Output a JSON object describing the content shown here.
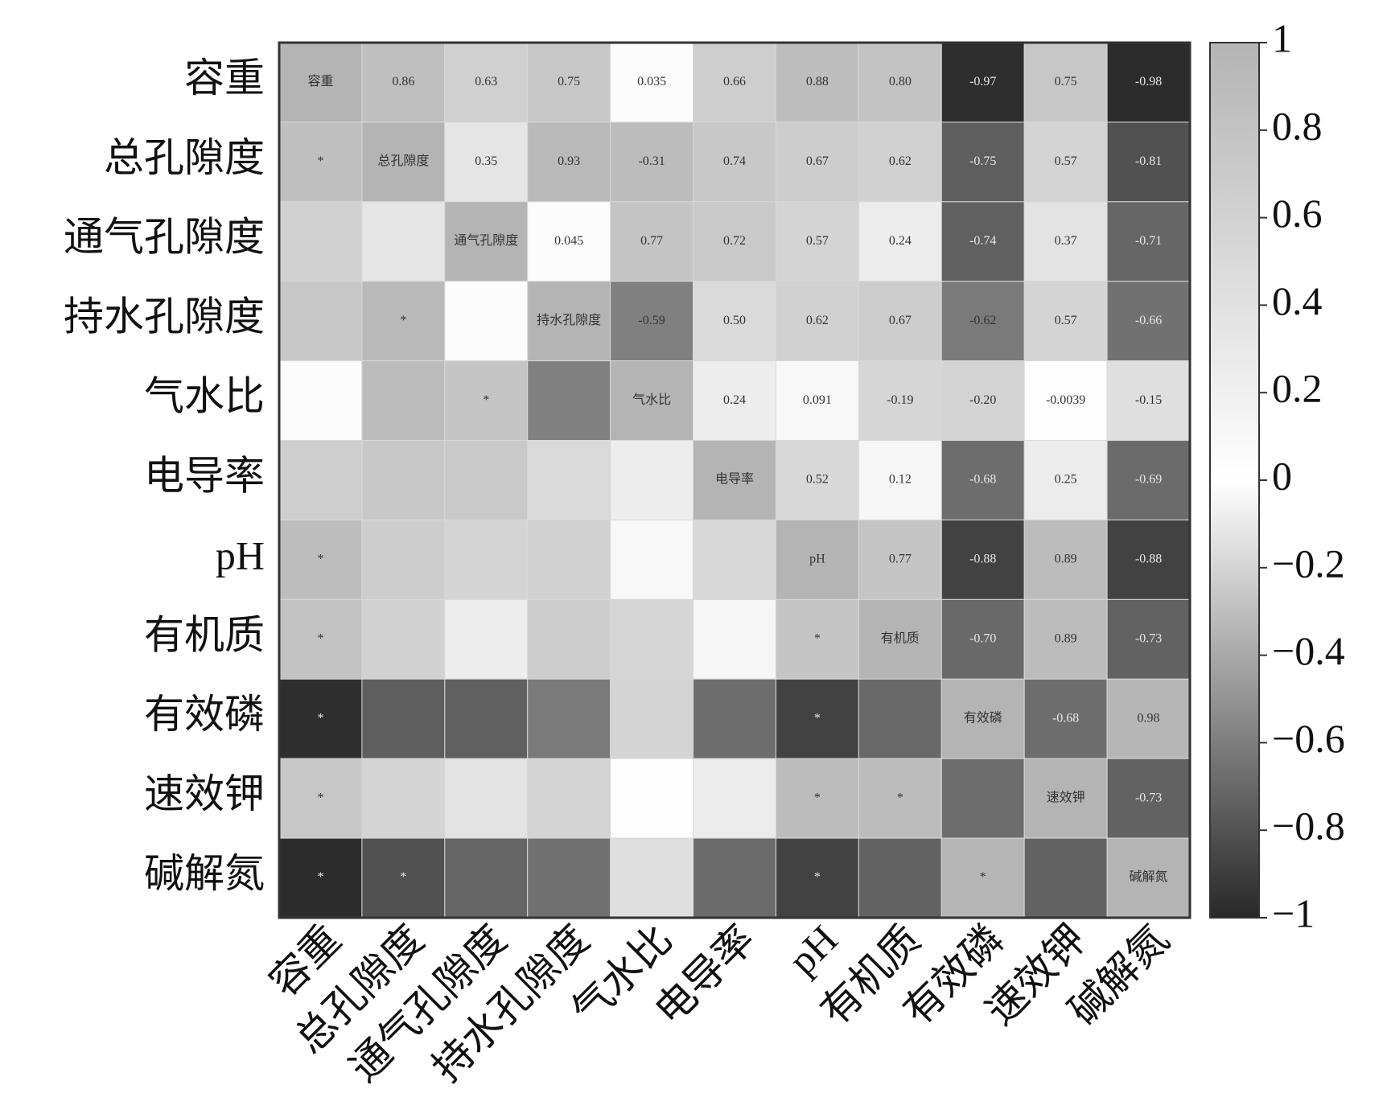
{
  "chart_data": {
    "type": "heatmap",
    "categories": [
      "容重",
      "总孔隙度",
      "通气孔隙度",
      "持水孔隙度",
      "气水比",
      "电导率",
      "pH",
      "有机质",
      "有效磷",
      "速效钾",
      "碱解氮"
    ],
    "values": [
      [
        null,
        0.86,
        0.63,
        0.75,
        0.035,
        0.66,
        0.88,
        0.8,
        -0.97,
        0.75,
        -0.98
      ],
      [
        null,
        null,
        0.35,
        0.93,
        -0.31,
        0.74,
        0.67,
        0.62,
        -0.75,
        0.57,
        -0.81
      ],
      [
        null,
        null,
        null,
        0.045,
        0.77,
        0.72,
        0.57,
        0.24,
        -0.74,
        0.37,
        -0.71
      ],
      [
        null,
        null,
        null,
        null,
        -0.59,
        0.5,
        0.62,
        0.67,
        -0.62,
        0.57,
        -0.66
      ],
      [
        null,
        null,
        null,
        null,
        null,
        0.24,
        0.091,
        -0.19,
        -0.2,
        -0.0039,
        -0.15
      ],
      [
        null,
        null,
        null,
        null,
        null,
        null,
        0.52,
        0.12,
        -0.68,
        0.25,
        -0.69
      ],
      [
        null,
        null,
        null,
        null,
        null,
        null,
        null,
        0.77,
        -0.88,
        0.89,
        -0.88
      ],
      [
        null,
        null,
        null,
        null,
        null,
        null,
        null,
        null,
        -0.7,
        0.89,
        -0.73
      ],
      [
        null,
        null,
        null,
        null,
        null,
        null,
        null,
        null,
        null,
        -0.68,
        0.98
      ],
      [
        null,
        null,
        null,
        null,
        null,
        null,
        null,
        null,
        null,
        null,
        -0.73
      ],
      [
        null,
        null,
        null,
        null,
        null,
        null,
        null,
        null,
        null,
        null,
        null
      ]
    ],
    "value_labels": [
      [
        null,
        "0.86",
        "0.63",
        "0.75",
        "0.035",
        "0.66",
        "0.88",
        "0.80",
        "-0.97",
        "0.75",
        "-0.98"
      ],
      [
        null,
        null,
        "0.35",
        "0.93",
        "-0.31",
        "0.74",
        "0.67",
        "0.62",
        "-0.75",
        "0.57",
        "-0.81"
      ],
      [
        null,
        null,
        null,
        "0.045",
        "0.77",
        "0.72",
        "0.57",
        "0.24",
        "-0.74",
        "0.37",
        "-0.71"
      ],
      [
        null,
        null,
        null,
        null,
        "-0.59",
        "0.50",
        "0.62",
        "0.67",
        "-0.62",
        "0.57",
        "-0.66"
      ],
      [
        null,
        null,
        null,
        null,
        null,
        "0.24",
        "0.091",
        "-0.19",
        "-0.20",
        "-0.0039",
        "-0.15"
      ],
      [
        null,
        null,
        null,
        null,
        null,
        null,
        "0.52",
        "0.12",
        "-0.68",
        "0.25",
        "-0.69"
      ],
      [
        null,
        null,
        null,
        null,
        null,
        null,
        null,
        "0.77",
        "-0.88",
        "0.89",
        "-0.88"
      ],
      [
        null,
        null,
        null,
        null,
        null,
        null,
        null,
        null,
        "-0.70",
        "0.89",
        "-0.73"
      ],
      [
        null,
        null,
        null,
        null,
        null,
        null,
        null,
        null,
        null,
        "-0.68",
        "0.98"
      ],
      [
        null,
        null,
        null,
        null,
        null,
        null,
        null,
        null,
        null,
        null,
        "-0.73"
      ],
      [
        null,
        null,
        null,
        null,
        null,
        null,
        null,
        null,
        null,
        null,
        null
      ]
    ],
    "significance": [
      [
        null,
        null,
        null,
        null,
        null,
        null,
        null,
        null,
        null,
        null,
        null
      ],
      [
        "*",
        null,
        null,
        null,
        null,
        null,
        null,
        null,
        null,
        null,
        null
      ],
      [
        null,
        null,
        null,
        null,
        null,
        null,
        null,
        null,
        null,
        null,
        null
      ],
      [
        null,
        "*",
        null,
        null,
        null,
        null,
        null,
        null,
        null,
        null,
        null
      ],
      [
        null,
        null,
        "*",
        null,
        null,
        null,
        null,
        null,
        null,
        null,
        null
      ],
      [
        null,
        null,
        null,
        null,
        null,
        null,
        null,
        null,
        null,
        null,
        null
      ],
      [
        "*",
        null,
        null,
        null,
        null,
        null,
        null,
        null,
        null,
        null,
        null
      ],
      [
        "*",
        null,
        null,
        null,
        null,
        null,
        "*",
        null,
        null,
        null,
        null
      ],
      [
        "*",
        null,
        null,
        null,
        null,
        null,
        "*",
        null,
        null,
        null,
        null
      ],
      [
        "*",
        null,
        null,
        null,
        null,
        null,
        "*",
        "*",
        null,
        null,
        null
      ],
      [
        "*",
        "*",
        null,
        null,
        null,
        null,
        "*",
        null,
        "*",
        null,
        null
      ]
    ],
    "colormap": [
      "#282828",
      "#ffffff",
      "#b4b4b4"
    ],
    "clim": [
      -1,
      1
    ],
    "cticks": [
      1,
      0.8,
      0.6,
      0.4,
      0.2,
      0,
      {
        "value": -0.2,
        "label": "−0.2"
      },
      {
        "value": -0.4,
        "label": "−0.4"
      },
      {
        "value": -0.6,
        "label": "−0.6"
      },
      {
        "value": -0.8,
        "label": "−0.8"
      },
      {
        "value": -1,
        "label": "−1"
      }
    ]
  }
}
